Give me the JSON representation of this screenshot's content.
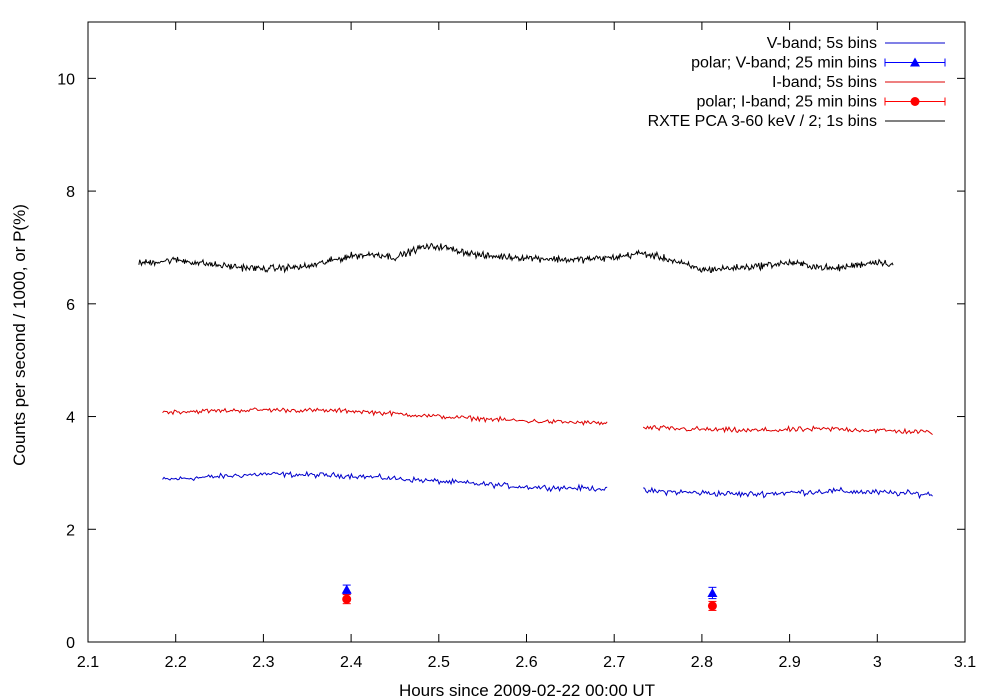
{
  "chart_data": {
    "type": "line",
    "title": "",
    "xlabel": "Hours since 2009-02-22 00:00 UT",
    "ylabel": "Counts per second / 1000, or P(%)",
    "xlim": [
      2.1,
      3.1
    ],
    "ylim": [
      0,
      11
    ],
    "x_ticks": [
      2.1,
      2.2,
      2.3,
      2.4,
      2.5,
      2.6,
      2.7,
      2.8,
      2.9,
      3.0,
      3.1
    ],
    "x_tick_labels": [
      "2.1",
      "2.2",
      "2.3",
      "2.4",
      "2.5",
      "2.6",
      "2.7",
      "2.8",
      "2.9",
      "3",
      "3.1"
    ],
    "y_ticks": [
      0,
      2,
      4,
      6,
      8,
      10
    ],
    "y_tick_labels": [
      "0",
      "2",
      "4",
      "6",
      "8",
      "10"
    ],
    "grid": false,
    "legend_position": "top-right",
    "series": [
      {
        "name": "V-band; 5s bins",
        "style": "line",
        "color": "#0000cc",
        "segments": [
          {
            "x_start": 2.185,
            "x_end": 2.692,
            "base": [
              [
                2.185,
                2.88
              ],
              [
                2.3,
                2.98
              ],
              [
                2.4,
                2.95
              ],
              [
                2.5,
                2.85
              ],
              [
                2.6,
                2.75
              ],
              [
                2.692,
                2.72
              ]
            ],
            "noise": 0.07,
            "n": 300
          },
          {
            "x_start": 2.733,
            "x_end": 3.063,
            "base": [
              [
                2.733,
                2.68
              ],
              [
                2.85,
                2.62
              ],
              [
                2.95,
                2.68
              ],
              [
                3.063,
                2.62
              ]
            ],
            "noise": 0.08,
            "n": 200
          }
        ]
      },
      {
        "name": "polar; V-band; 25 min bins",
        "style": "points-errorbars",
        "marker": "triangle",
        "color": "#0000ff",
        "points": [
          {
            "x": 2.395,
            "y": 0.93,
            "yerr": 0.08
          },
          {
            "x": 2.812,
            "y": 0.87,
            "yerr": 0.1
          }
        ]
      },
      {
        "name": "I-band; 5s bins",
        "style": "line",
        "color": "#dd0000",
        "segments": [
          {
            "x_start": 2.185,
            "x_end": 2.692,
            "base": [
              [
                2.185,
                4.08
              ],
              [
                2.3,
                4.12
              ],
              [
                2.4,
                4.1
              ],
              [
                2.5,
                4.0
              ],
              [
                2.6,
                3.92
              ],
              [
                2.692,
                3.88
              ]
            ],
            "noise": 0.06,
            "n": 300
          },
          {
            "x_start": 2.733,
            "x_end": 3.063,
            "base": [
              [
                2.733,
                3.8
              ],
              [
                2.85,
                3.75
              ],
              [
                2.95,
                3.78
              ],
              [
                3.063,
                3.72
              ]
            ],
            "noise": 0.07,
            "n": 200
          }
        ]
      },
      {
        "name": "polar; I-band; 25 min bins",
        "style": "points-errorbars",
        "marker": "circle",
        "color": "#ff0000",
        "points": [
          {
            "x": 2.395,
            "y": 0.76,
            "yerr": 0.08
          },
          {
            "x": 2.812,
            "y": 0.64,
            "yerr": 0.08
          }
        ]
      },
      {
        "name": "RXTE PCA 3-60 keV / 2; 1s bins",
        "style": "line",
        "color": "#000000",
        "segments": [
          {
            "x_start": 2.158,
            "x_end": 3.018,
            "base": [
              [
                2.158,
                6.72
              ],
              [
                2.2,
                6.78
              ],
              [
                2.25,
                6.68
              ],
              [
                2.3,
                6.62
              ],
              [
                2.35,
                6.66
              ],
              [
                2.4,
                6.85
              ],
              [
                2.43,
                6.88
              ],
              [
                2.45,
                6.82
              ],
              [
                2.48,
                7.0
              ],
              [
                2.5,
                7.02
              ],
              [
                2.55,
                6.85
              ],
              [
                2.6,
                6.82
              ],
              [
                2.65,
                6.78
              ],
              [
                2.7,
                6.82
              ],
              [
                2.73,
                6.9
              ],
              [
                2.76,
                6.8
              ],
              [
                2.8,
                6.6
              ],
              [
                2.85,
                6.65
              ],
              [
                2.9,
                6.73
              ],
              [
                2.95,
                6.62
              ],
              [
                3.0,
                6.75
              ],
              [
                3.018,
                6.7
              ]
            ],
            "noise": 0.09,
            "n": 860
          }
        ]
      }
    ]
  }
}
